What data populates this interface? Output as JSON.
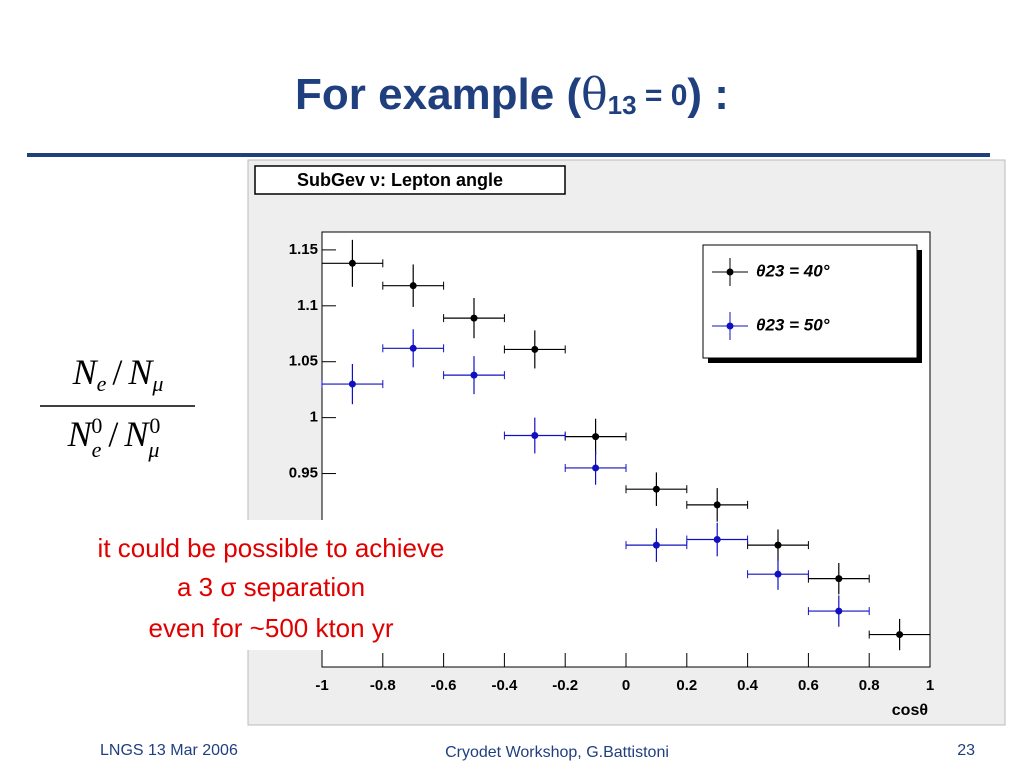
{
  "slide": {
    "title_parts": [
      "For example (",
      "θ",
      "13",
      " = 0",
      ") :"
    ],
    "formula": {
      "numerator": [
        "N",
        "e",
        "/",
        "N",
        "μ"
      ],
      "denominator": [
        "N",
        "e",
        "0",
        "/",
        "N",
        "μ",
        "0"
      ]
    },
    "annotation": [
      "it could be possible to achieve",
      "a 3 σ separation",
      "even for ~500 kton yr"
    ],
    "footer": {
      "left": "LNGS 13 Mar 2006",
      "center": "Cryodet Workshop, G.Battistoni",
      "right": "23"
    }
  },
  "chart_data": {
    "type": "scatter",
    "title": "SubGev ν: Lepton angle",
    "x_label": "cosθ",
    "x": [
      -0.9,
      -0.7,
      -0.5,
      -0.3,
      -0.1,
      0.1,
      0.3,
      0.5,
      0.7,
      0.9
    ],
    "xerr": 0.1,
    "series": [
      {
        "name": "θ23 = 40°",
        "color": "#000000",
        "values": [
          1.138,
          1.118,
          1.089,
          1.061,
          0.983,
          0.936,
          0.922,
          0.886,
          0.856,
          0.806
        ],
        "errors": [
          0.021,
          0.019,
          0.018,
          0.017,
          0.016,
          0.015,
          0.015,
          0.014,
          0.014,
          0.014
        ]
      },
      {
        "name": "θ23 = 50°",
        "color": "#1010c0",
        "values": [
          1.03,
          1.062,
          1.038,
          0.984,
          0.955,
          0.886,
          0.891,
          0.86,
          0.827,
          null
        ],
        "errors": [
          0.018,
          0.017,
          0.017,
          0.016,
          0.015,
          0.015,
          0.015,
          0.014,
          0.014,
          null
        ]
      }
    ],
    "xlim": [
      -1,
      1
    ],
    "xticks": [
      -1,
      -0.8,
      -0.6,
      -0.4,
      -0.2,
      0,
      0.2,
      0.4,
      0.6,
      0.8,
      1
    ],
    "ylim": [
      0.777,
      1.166
    ],
    "yticks": [
      0.95,
      1,
      1.05,
      1.1,
      1.15
    ],
    "legend": "upper right"
  }
}
